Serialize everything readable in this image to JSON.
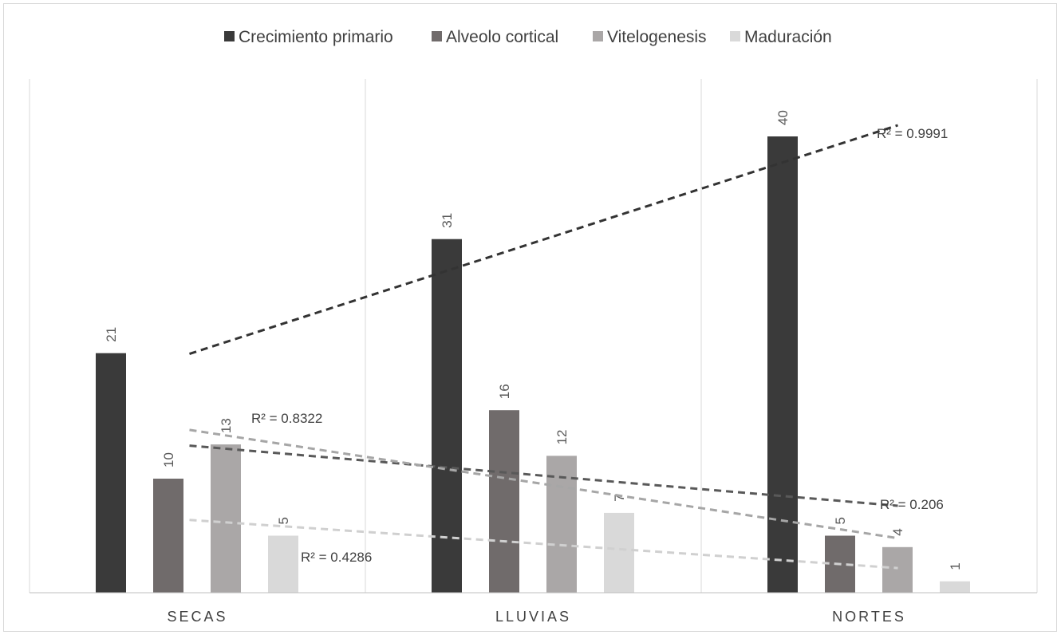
{
  "chart_data": {
    "type": "bar",
    "categories": [
      "SECAS",
      "LLUVIAS",
      "NORTES"
    ],
    "series": [
      {
        "name": "Crecimiento primario",
        "color": "#3a3a3a",
        "values": [
          21,
          31,
          40
        ],
        "labels": [
          "21",
          "31",
          "40"
        ],
        "r2": "R² = 0.9991"
      },
      {
        "name": "Alveolo cortical",
        "color": "#706b6b",
        "values": [
          10,
          16,
          5
        ],
        "labels": [
          "10",
          "16",
          "5"
        ],
        "r2": "R² = 0.206"
      },
      {
        "name": "Vitelogenesis",
        "color": "#aaa7a7",
        "values": [
          13,
          12,
          4
        ],
        "labels": [
          "13",
          "12",
          "4"
        ],
        "r2": "R² = 0.8322"
      },
      {
        "name": "Maduración",
        "color": "#d9d9d9",
        "values": [
          5,
          7,
          1
        ],
        "labels": [
          "5",
          "7",
          "1"
        ],
        "r2": "R² = 0.4286"
      }
    ],
    "trendlines": [
      {
        "series": "Crecimiento primario",
        "type": "linear",
        "color": "#3a3a3a"
      },
      {
        "series": "Alveolo cortical",
        "type": "linear",
        "color": "#706b6b"
      },
      {
        "series": "Vitelogenesis",
        "type": "linear",
        "color": "#aaa7a7"
      },
      {
        "series": "Maduración",
        "type": "linear",
        "color": "#d9d9d9"
      }
    ],
    "ylim": [
      0,
      42
    ],
    "grid": "vertical category separators",
    "legend": "top",
    "title": "",
    "xlabel": "",
    "ylabel": ""
  }
}
